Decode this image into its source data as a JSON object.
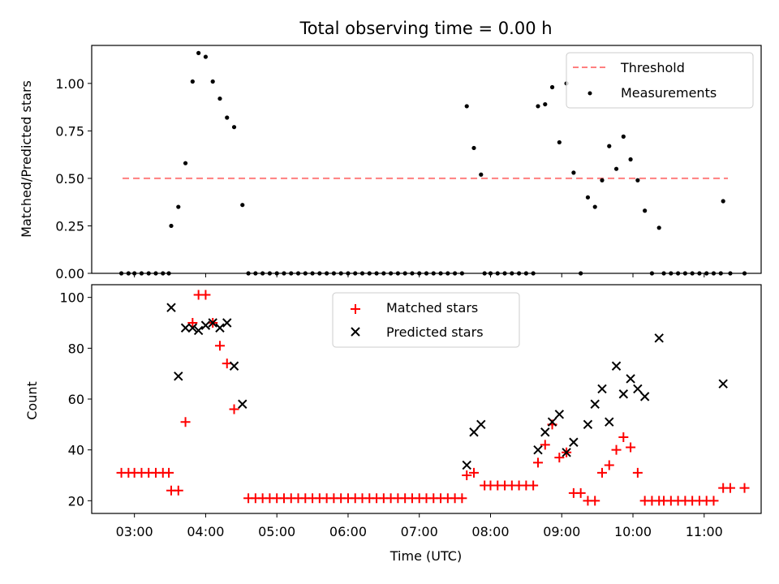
{
  "title": "Total observing time = 0.00 h",
  "chart_data": [
    {
      "type": "scatter",
      "ylabel": "Matched/Predicted stars",
      "xlabel": "",
      "xlim": [
        "02:24",
        "11:48"
      ],
      "ylim": [
        0,
        1.2
      ],
      "yticks": [
        "0.00",
        "0.25",
        "0.50",
        "0.75",
        "1.00"
      ],
      "ytick_values": [
        0,
        0.25,
        0.5,
        0.75,
        1.0
      ],
      "grid": false,
      "legend_position": "top-right",
      "legend": [
        {
          "label": "Threshold",
          "style": "dashed-line",
          "color": "#ff7f7f"
        },
        {
          "label": "Measurements",
          "style": "dot",
          "color": "#000000"
        }
      ],
      "threshold": {
        "value": 0.5,
        "x": [
          "02:50",
          "11:20"
        ]
      },
      "series": [
        {
          "name": "Measurements",
          "color": "#000000",
          "marker": "dot",
          "points": [
            [
              "02:49",
              0
            ],
            [
              "02:55",
              0
            ],
            [
              "03:00",
              0
            ],
            [
              "03:06",
              0
            ],
            [
              "03:12",
              0
            ],
            [
              "03:18",
              0
            ],
            [
              "03:24",
              0
            ],
            [
              "03:29",
              0
            ],
            [
              "03:31",
              0.25
            ],
            [
              "03:37",
              0.35
            ],
            [
              "03:43",
              0.58
            ],
            [
              "03:49",
              1.01
            ],
            [
              "03:54",
              1.16
            ],
            [
              "04:00",
              1.14
            ],
            [
              "04:06",
              1.01
            ],
            [
              "04:12",
              0.92
            ],
            [
              "04:18",
              0.82
            ],
            [
              "04:24",
              0.77
            ],
            [
              "04:31",
              0.36
            ],
            [
              "04:36",
              0
            ],
            [
              "04:42",
              0
            ],
            [
              "04:48",
              0
            ],
            [
              "04:54",
              0
            ],
            [
              "05:00",
              0
            ],
            [
              "05:06",
              0
            ],
            [
              "05:12",
              0
            ],
            [
              "05:18",
              0
            ],
            [
              "05:24",
              0
            ],
            [
              "05:30",
              0
            ],
            [
              "05:36",
              0
            ],
            [
              "05:42",
              0
            ],
            [
              "05:48",
              0
            ],
            [
              "05:54",
              0
            ],
            [
              "06:00",
              0
            ],
            [
              "06:06",
              0
            ],
            [
              "06:12",
              0
            ],
            [
              "06:18",
              0
            ],
            [
              "06:24",
              0
            ],
            [
              "06:30",
              0
            ],
            [
              "06:36",
              0
            ],
            [
              "06:42",
              0
            ],
            [
              "06:48",
              0
            ],
            [
              "06:54",
              0
            ],
            [
              "07:00",
              0
            ],
            [
              "07:06",
              0
            ],
            [
              "07:12",
              0
            ],
            [
              "07:18",
              0
            ],
            [
              "07:24",
              0
            ],
            [
              "07:30",
              0
            ],
            [
              "07:36",
              0
            ],
            [
              "07:40",
              0.88
            ],
            [
              "07:46",
              0.66
            ],
            [
              "07:52",
              0.52
            ],
            [
              "07:55",
              0
            ],
            [
              "08:00",
              0
            ],
            [
              "08:06",
              0
            ],
            [
              "08:12",
              0
            ],
            [
              "08:18",
              0
            ],
            [
              "08:24",
              0
            ],
            [
              "08:30",
              0
            ],
            [
              "08:36",
              0
            ],
            [
              "08:40",
              0.88
            ],
            [
              "08:46",
              0.89
            ],
            [
              "08:52",
              0.98
            ],
            [
              "08:58",
              0.69
            ],
            [
              "09:04",
              1.0
            ],
            [
              "09:10",
              0.53
            ],
            [
              "09:16",
              0
            ],
            [
              "09:22",
              0.4
            ],
            [
              "09:28",
              0.35
            ],
            [
              "09:34",
              0.49
            ],
            [
              "09:40",
              0.67
            ],
            [
              "09:46",
              0.55
            ],
            [
              "09:52",
              0.72
            ],
            [
              "09:58",
              0.6
            ],
            [
              "10:04",
              0.49
            ],
            [
              "10:10",
              0.33
            ],
            [
              "10:16",
              0
            ],
            [
              "10:22",
              0.24
            ],
            [
              "10:26",
              0
            ],
            [
              "10:32",
              0
            ],
            [
              "10:38",
              0
            ],
            [
              "10:44",
              0
            ],
            [
              "10:50",
              0
            ],
            [
              "10:56",
              0
            ],
            [
              "11:02",
              0
            ],
            [
              "11:08",
              0
            ],
            [
              "11:14",
              0
            ],
            [
              "11:16",
              0.38
            ],
            [
              "11:22",
              0
            ],
            [
              "11:34",
              0
            ]
          ]
        }
      ]
    },
    {
      "type": "scatter",
      "ylabel": "Count",
      "xlabel": "Time (UTC)",
      "xlim": [
        "02:24",
        "11:48"
      ],
      "ylim": [
        15,
        105
      ],
      "yticks": [
        "20",
        "40",
        "60",
        "80",
        "100"
      ],
      "ytick_values": [
        20,
        40,
        60,
        80,
        100
      ],
      "xticks": [
        "03:00",
        "04:00",
        "05:00",
        "06:00",
        "07:00",
        "08:00",
        "09:00",
        "10:00",
        "11:00"
      ],
      "grid": false,
      "legend_position": "top-center",
      "legend": [
        {
          "label": "Matched stars",
          "style": "plus",
          "color": "#ff0000"
        },
        {
          "label": "Predicted stars",
          "style": "cross",
          "color": "#000000"
        }
      ],
      "series": [
        {
          "name": "Matched stars",
          "color": "#ff0000",
          "marker": "plus",
          "points": [
            [
              "02:49",
              31
            ],
            [
              "02:55",
              31
            ],
            [
              "03:00",
              31
            ],
            [
              "03:06",
              31
            ],
            [
              "03:12",
              31
            ],
            [
              "03:18",
              31
            ],
            [
              "03:24",
              31
            ],
            [
              "03:29",
              31
            ],
            [
              "03:31",
              24
            ],
            [
              "03:37",
              24
            ],
            [
              "03:43",
              51
            ],
            [
              "03:49",
              90
            ],
            [
              "03:54",
              101
            ],
            [
              "04:00",
              101
            ],
            [
              "04:06",
              90
            ],
            [
              "04:12",
              81
            ],
            [
              "04:18",
              74
            ],
            [
              "04:24",
              56
            ],
            [
              "04:36",
              21
            ],
            [
              "04:42",
              21
            ],
            [
              "04:48",
              21
            ],
            [
              "04:54",
              21
            ],
            [
              "05:00",
              21
            ],
            [
              "05:06",
              21
            ],
            [
              "05:12",
              21
            ],
            [
              "05:18",
              21
            ],
            [
              "05:24",
              21
            ],
            [
              "05:30",
              21
            ],
            [
              "05:36",
              21
            ],
            [
              "05:42",
              21
            ],
            [
              "05:48",
              21
            ],
            [
              "05:54",
              21
            ],
            [
              "06:00",
              21
            ],
            [
              "06:06",
              21
            ],
            [
              "06:12",
              21
            ],
            [
              "06:18",
              21
            ],
            [
              "06:24",
              21
            ],
            [
              "06:30",
              21
            ],
            [
              "06:36",
              21
            ],
            [
              "06:42",
              21
            ],
            [
              "06:48",
              21
            ],
            [
              "06:54",
              21
            ],
            [
              "07:00",
              21
            ],
            [
              "07:06",
              21
            ],
            [
              "07:12",
              21
            ],
            [
              "07:18",
              21
            ],
            [
              "07:24",
              21
            ],
            [
              "07:30",
              21
            ],
            [
              "07:36",
              21
            ],
            [
              "07:40",
              30
            ],
            [
              "07:46",
              31
            ],
            [
              "07:55",
              26
            ],
            [
              "08:00",
              26
            ],
            [
              "08:06",
              26
            ],
            [
              "08:12",
              26
            ],
            [
              "08:18",
              26
            ],
            [
              "08:24",
              26
            ],
            [
              "08:30",
              26
            ],
            [
              "08:36",
              26
            ],
            [
              "08:40",
              35
            ],
            [
              "08:46",
              42
            ],
            [
              "08:52",
              50
            ],
            [
              "08:58",
              37
            ],
            [
              "09:04",
              39
            ],
            [
              "09:10",
              23
            ],
            [
              "09:16",
              23
            ],
            [
              "09:22",
              20
            ],
            [
              "09:28",
              20
            ],
            [
              "09:34",
              31
            ],
            [
              "09:40",
              34
            ],
            [
              "09:46",
              40
            ],
            [
              "09:52",
              45
            ],
            [
              "09:58",
              41
            ],
            [
              "10:04",
              31
            ],
            [
              "10:10",
              20
            ],
            [
              "10:16",
              20
            ],
            [
              "10:22",
              20
            ],
            [
              "10:26",
              20
            ],
            [
              "10:32",
              20
            ],
            [
              "10:38",
              20
            ],
            [
              "10:44",
              20
            ],
            [
              "10:50",
              20
            ],
            [
              "10:56",
              20
            ],
            [
              "11:02",
              20
            ],
            [
              "11:08",
              20
            ],
            [
              "11:16",
              25
            ],
            [
              "11:22",
              25
            ],
            [
              "11:34",
              25
            ]
          ]
        },
        {
          "name": "Predicted stars",
          "color": "#000000",
          "marker": "cross",
          "points": [
            [
              "03:31",
              96
            ],
            [
              "03:37",
              69
            ],
            [
              "03:43",
              88
            ],
            [
              "03:49",
              88
            ],
            [
              "03:54",
              87
            ],
            [
              "04:00",
              89
            ],
            [
              "04:06",
              90
            ],
            [
              "04:12",
              88
            ],
            [
              "04:18",
              90
            ],
            [
              "04:24",
              73
            ],
            [
              "04:31",
              58
            ],
            [
              "07:40",
              34
            ],
            [
              "07:46",
              47
            ],
            [
              "07:52",
              50
            ],
            [
              "08:40",
              40
            ],
            [
              "08:46",
              47
            ],
            [
              "08:52",
              51
            ],
            [
              "08:58",
              54
            ],
            [
              "09:04",
              39
            ],
            [
              "09:10",
              43
            ],
            [
              "09:22",
              50
            ],
            [
              "09:28",
              58
            ],
            [
              "09:34",
              64
            ],
            [
              "09:40",
              51
            ],
            [
              "09:46",
              73
            ],
            [
              "09:52",
              62
            ],
            [
              "09:58",
              68
            ],
            [
              "10:04",
              64
            ],
            [
              "10:10",
              61
            ],
            [
              "10:22",
              84
            ],
            [
              "11:16",
              66
            ]
          ]
        }
      ]
    }
  ]
}
